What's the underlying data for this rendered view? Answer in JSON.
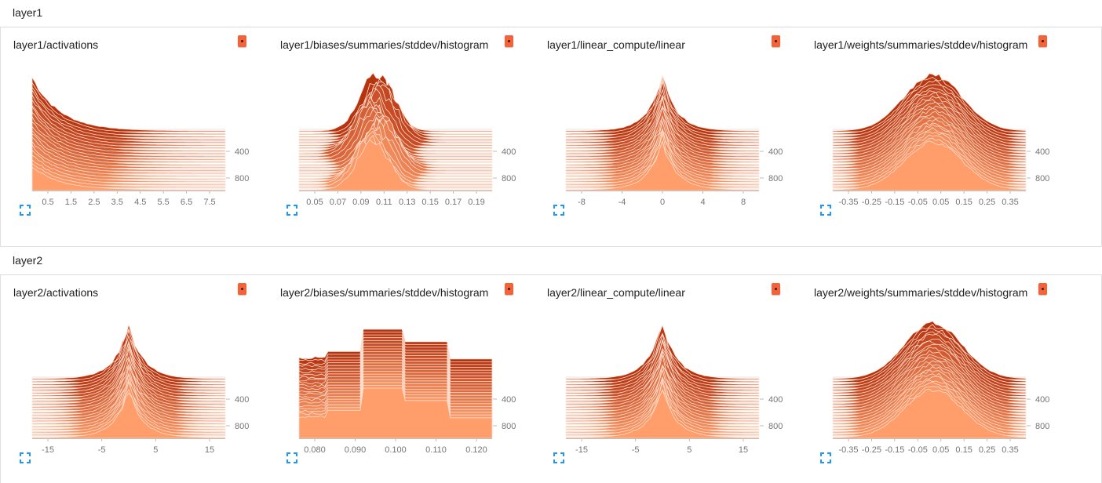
{
  "sections": [
    {
      "title": "layer1",
      "cards": [
        {
          "title": "layer1/activations",
          "type": "decay",
          "x_ticks": [
            "0.5",
            "1.5",
            "2.5",
            "3.5",
            "4.5",
            "5.5",
            "6.5",
            "7.5"
          ],
          "y_ticks": [
            "400",
            "800"
          ]
        },
        {
          "title": "layer1/biases/summaries/stddev/histogram",
          "type": "bell_narrow",
          "x_ticks": [
            "0.05",
            "0.07",
            "0.09",
            "0.11",
            "0.13",
            "0.15",
            "0.17",
            "0.19"
          ],
          "y_ticks": [
            "400",
            "800"
          ]
        },
        {
          "title": "layer1/linear_compute/linear",
          "type": "bell_peak",
          "x_ticks": [
            "-8",
            "-4",
            "0",
            "4",
            "8"
          ],
          "y_ticks": [
            "400",
            "800"
          ]
        },
        {
          "title": "layer1/weights/summaries/stddev/histogram",
          "type": "bell_wide",
          "x_ticks": [
            "-0.35",
            "-0.25",
            "-0.15",
            "-0.05",
            "0.05",
            "0.15",
            "0.25",
            "0.35"
          ],
          "y_ticks": [
            "400",
            "800"
          ]
        }
      ]
    },
    {
      "title": "layer2",
      "cards": [
        {
          "title": "layer2/activations",
          "type": "bell_peak",
          "x_ticks": [
            "-15",
            "-5",
            "5",
            "15"
          ],
          "y_ticks": [
            "400",
            "800"
          ]
        },
        {
          "title": "layer2/biases/summaries/stddev/histogram",
          "type": "blocky",
          "x_ticks": [
            "0.080",
            "0.090",
            "0.100",
            "0.110",
            "0.120"
          ],
          "y_ticks": [
            "400",
            "800"
          ]
        },
        {
          "title": "layer2/linear_compute/linear",
          "type": "bell_peak",
          "x_ticks": [
            "-15",
            "-5",
            "5",
            "15"
          ],
          "y_ticks": [
            "400",
            "800"
          ]
        },
        {
          "title": "layer2/weights/summaries/stddev/histogram",
          "type": "bell_wide",
          "x_ticks": [
            "-0.35",
            "-0.25",
            "-0.15",
            "-0.05",
            "0.05",
            "0.15",
            "0.25",
            "0.35"
          ],
          "y_ticks": [
            "400",
            "800"
          ]
        }
      ]
    }
  ],
  "colors": {
    "badge": "#f4623a",
    "dark": "#b5330f",
    "light": "#ff9d6b",
    "stroke": "#ffe0d0",
    "grid": "#e6e6e6",
    "expand_icon": "#2196f3"
  },
  "icons": {
    "badge": "dot-icon",
    "expand": "fullscreen-icon"
  }
}
